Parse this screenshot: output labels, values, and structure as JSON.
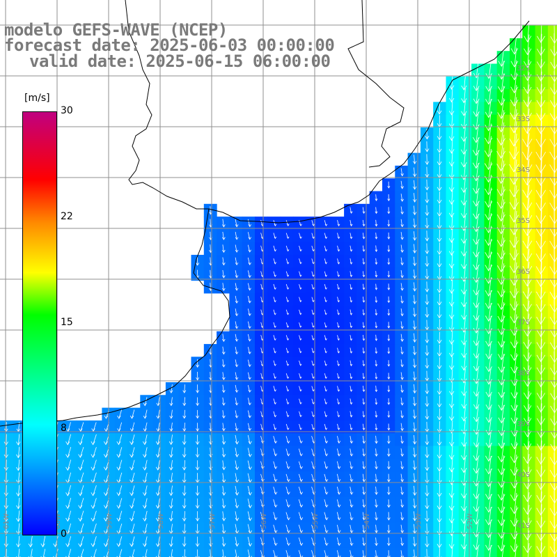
{
  "header": {
    "line1": "modelo GEFS-WAVE (NCEP)",
    "line2": "forecast date: 2025-06-03 00:00:00",
    "line3": "valid date: 2025-06-15 06:00:00"
  },
  "colorbar": {
    "unit": "[m/s]",
    "ticks": [
      "30",
      "22",
      "15",
      "8",
      "0"
    ],
    "colors": [
      "#0000ff",
      "#00aaff",
      "#00ffff",
      "#00ff00",
      "#ffff00",
      "#ff8800",
      "#ff0000",
      "#c00080"
    ]
  },
  "grid": {
    "lat_labels": [
      "32S",
      "33S",
      "34S",
      "35S",
      "36S",
      "37S",
      "38S",
      "39S",
      "40S",
      "41S"
    ],
    "lon_labels": [
      "61W",
      "60W",
      "59W",
      "58W",
      "57W",
      "56W",
      "55W",
      "54W",
      "53W",
      "52W"
    ]
  },
  "colors": {
    "land": "#ffffff",
    "coast": "#000000",
    "grid": "#999999",
    "arrow": "#ffffff"
  }
}
